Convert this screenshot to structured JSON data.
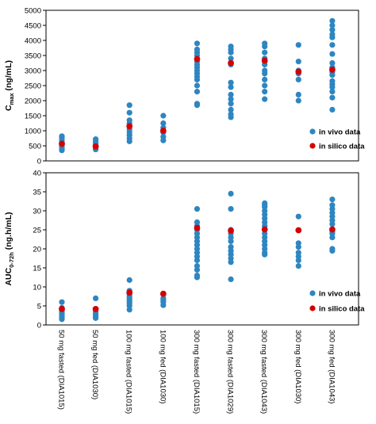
{
  "chart_data": [
    {
      "type": "scatter",
      "ylabel_main": "C",
      "ylabel_sub": "max",
      "ylabel_tail": " (ng/mL)",
      "ylim": [
        0,
        5000
      ],
      "yticks": [
        "0",
        "500",
        "1000",
        "1500",
        "2000",
        "2500",
        "3000",
        "3500",
        "4000",
        "4500",
        "5000"
      ],
      "grid": false,
      "legend_position": "right",
      "series": [
        {
          "name": "in vivo data",
          "color": "#2e86c1",
          "points_by_category": [
            [
              350,
              420,
              480,
              550,
              620,
              700,
              780,
              820
            ],
            [
              380,
              420,
              460,
              520,
              580,
              640,
              720
            ],
            [
              650,
              750,
              850,
              950,
              1050,
              1150,
              1250,
              1350,
              1600,
              1850
            ],
            [
              680,
              800,
              950,
              1100,
              1250,
              1500
            ],
            [
              1850,
              1900,
              2300,
              2500,
              2700,
              2800,
              2900,
              3000,
              3100,
              3200,
              3300,
              3500,
              3600,
              3700,
              3900
            ],
            [
              1450,
              1550,
              1700,
              1900,
              2050,
              2200,
              2450,
              2600,
              3200,
              3400,
              3600,
              3700,
              3800
            ],
            [
              2050,
              2300,
              2500,
              2700,
              2900,
              3000,
              3200,
              3300,
              3400,
              3600,
              3800,
              3900
            ],
            [
              2000,
              2200,
              2700,
              2900,
              3000,
              3300,
              3850
            ],
            [
              1700,
              2100,
              2300,
              2450,
              2550,
              2650,
              2850,
              2950,
              3100,
              3250,
              3550,
              3850,
              4100,
              4200,
              4350,
              4500,
              4650
            ]
          ]
        },
        {
          "name": "in silico data",
          "color": "#d50000",
          "points_by_category": [
            [
              570
            ],
            [
              480
            ],
            [
              1150
            ],
            [
              1000
            ],
            [
              3380
            ],
            [
              3250
            ],
            [
              3330
            ],
            [
              2960
            ],
            [
              3030
            ]
          ]
        }
      ]
    },
    {
      "type": "scatter",
      "ylabel_main": "AUC",
      "ylabel_sub": "0-72h",
      "ylabel_tail": " (ng.h/mL)",
      "ylim": [
        0,
        40
      ],
      "yticks": [
        "0",
        "5",
        "10",
        "15",
        "20",
        "25",
        "30",
        "35",
        "40"
      ],
      "grid": false,
      "legend_position": "right",
      "categories": [
        "50 mg fasted (DIA1015)",
        "50 mg fed (DIA1030)",
        "100 mg fasted (DIA1015)",
        "100 mg fed (DIA1030)",
        "300 mg fasted (DIA1015)",
        "300 mg fasted (DIA1029)",
        "300 mg fasted (DIA1043)",
        "300 mg fed (DIA1030)",
        "300 mg fed (DIA1043)"
      ],
      "series": [
        {
          "name": "in vivo data",
          "color": "#2e86c1",
          "points_by_category": [
            [
              1.5,
              2.0,
              2.5,
              3.0,
              3.5,
              4.0,
              4.5,
              6.0
            ],
            [
              1.8,
              2.2,
              2.6,
              3.0,
              3.5,
              4.0,
              7.0
            ],
            [
              4.0,
              5.0,
              5.5,
              6.0,
              6.5,
              7.0,
              7.5,
              8.0,
              8.5,
              9.0,
              11.8
            ],
            [
              5.2,
              6.0,
              6.5,
              7.0,
              8.0
            ],
            [
              12.5,
              13.0,
              14.5,
              15.5,
              17.0,
              18.0,
              19.0,
              20.0,
              21.0,
              22.0,
              23.0,
              24.0,
              25.0,
              26.0,
              27.0,
              30.5
            ],
            [
              12.0,
              16.5,
              17.5,
              18.5,
              19.5,
              20.5,
              22.0,
              23.0,
              24.0,
              25.0,
              30.5,
              34.5
            ],
            [
              18.5,
              19.0,
              20.0,
              21.0,
              22.0,
              23.0,
              24.0,
              25.0,
              26.0,
              27.0,
              28.0,
              29.0,
              30.0,
              31.0,
              31.5,
              32.0
            ],
            [
              15.5,
              17.0,
              18.0,
              19.0,
              20.5,
              21.5,
              28.5
            ],
            [
              19.5,
              20.0,
              23.0,
              24.0,
              24.5,
              25.0,
              26.5,
              27.5,
              28.5,
              29.5,
              30.5,
              31.5,
              33.0
            ]
          ]
        },
        {
          "name": "in silico data",
          "color": "#d50000",
          "points_by_category": [
            [
              4.2
            ],
            [
              4.2
            ],
            [
              8.5
            ],
            [
              8.2
            ],
            [
              25.5
            ],
            [
              24.8
            ],
            [
              25.1
            ],
            [
              24.9
            ],
            [
              25.1
            ]
          ]
        }
      ]
    }
  ]
}
